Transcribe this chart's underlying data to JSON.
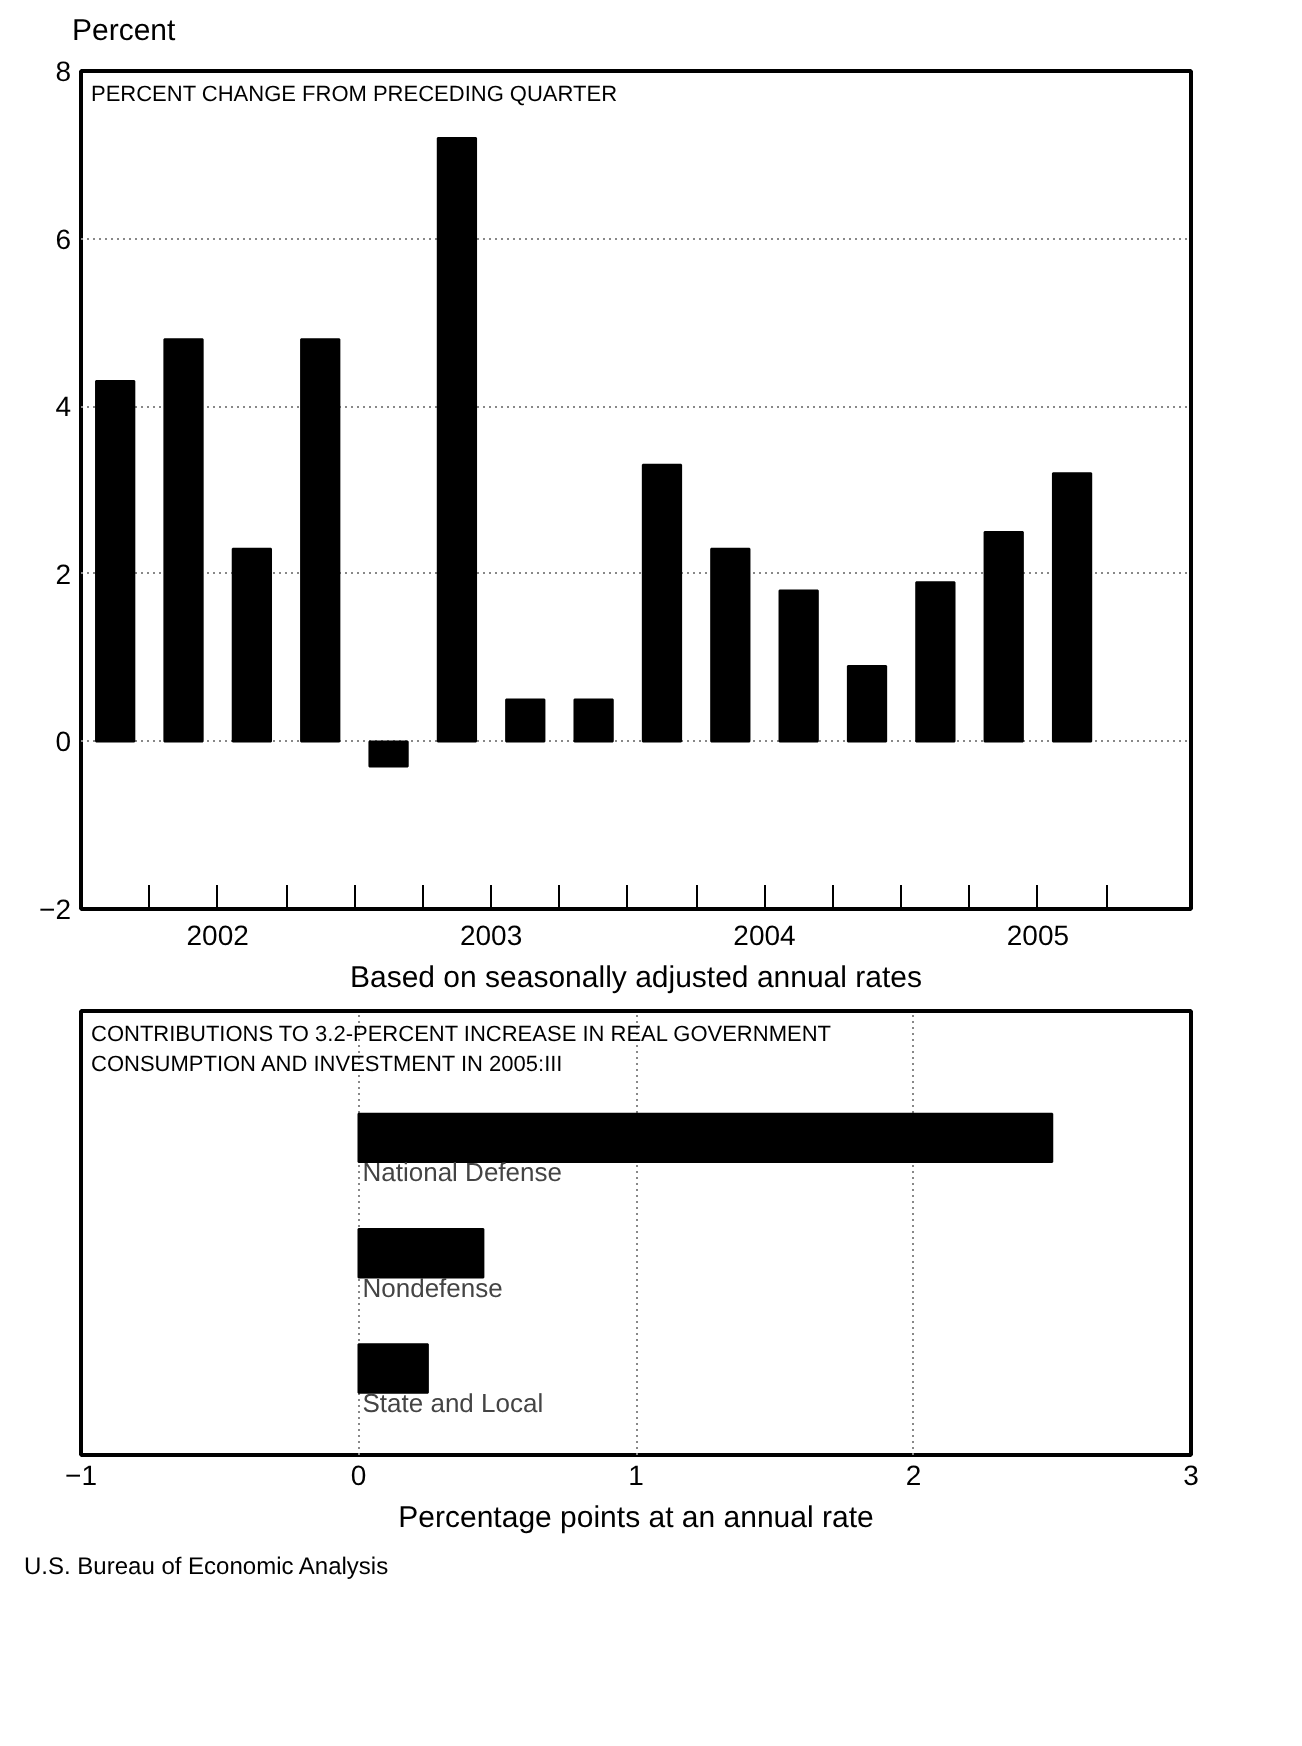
{
  "chart_data": [
    {
      "type": "bar",
      "title": "PERCENT CHANGE FROM PRECEDING QUARTER",
      "ylabel": "Percent",
      "xlabel": "Based on seasonally adjusted annual rates",
      "x": [
        2002.125,
        2002.375,
        2002.625,
        2002.875,
        2003.125,
        2003.375,
        2003.625,
        2003.875,
        2004.125,
        2004.375,
        2004.625,
        2004.875,
        2005.125,
        2005.375,
        2005.625
      ],
      "values": [
        4.3,
        4.8,
        2.3,
        4.8,
        -0.3,
        7.2,
        0.5,
        0.5,
        3.3,
        2.3,
        1.8,
        0.9,
        1.9,
        2.5,
        3.2
      ],
      "color": "#000000",
      "xlim": [
        2002,
        2006.06
      ],
      "xticks": [
        {
          "value": 2002.25,
          "label": null
        },
        {
          "value": 2002.5,
          "label": "2002"
        },
        {
          "value": 2002.75,
          "label": null
        },
        {
          "value": 2003,
          "label": null
        },
        {
          "value": 2003.25,
          "label": null
        },
        {
          "value": 2003.5,
          "label": "2003"
        },
        {
          "value": 2003.75,
          "label": null
        },
        {
          "value": 2004,
          "label": null
        },
        {
          "value": 2004.25,
          "label": null
        },
        {
          "value": 2004.5,
          "label": "2004"
        },
        {
          "value": 2004.75,
          "label": null
        },
        {
          "value": 2005,
          "label": null
        },
        {
          "value": 2005.25,
          "label": null
        },
        {
          "value": 2005.5,
          "label": "2005"
        },
        {
          "value": 2005.75,
          "label": null
        }
      ],
      "ylim": [
        -2,
        8
      ],
      "yticks": [
        -2,
        0,
        2,
        4,
        6,
        8
      ],
      "grid": "y"
    },
    {
      "type": "bar",
      "orientation": "horizontal",
      "title": "CONTRIBUTIONS TO 3.2-PERCENT INCREASE IN REAL GOVERNMENT\nCONSUMPTION AND INVESTMENT IN 2005:III",
      "xlabel": "Percentage points at an annual rate",
      "categories": [
        "National Defense",
        "Nondefense",
        "State and Local"
      ],
      "values": [
        2.5,
        0.45,
        0.25
      ],
      "color": "#000000",
      "xlim": [
        -1,
        3
      ],
      "xticks": [
        -1,
        0,
        1,
        2,
        3
      ],
      "grid": "x",
      "annotations": [
        "U.S. Bureau of Economic Analysis"
      ]
    }
  ]
}
